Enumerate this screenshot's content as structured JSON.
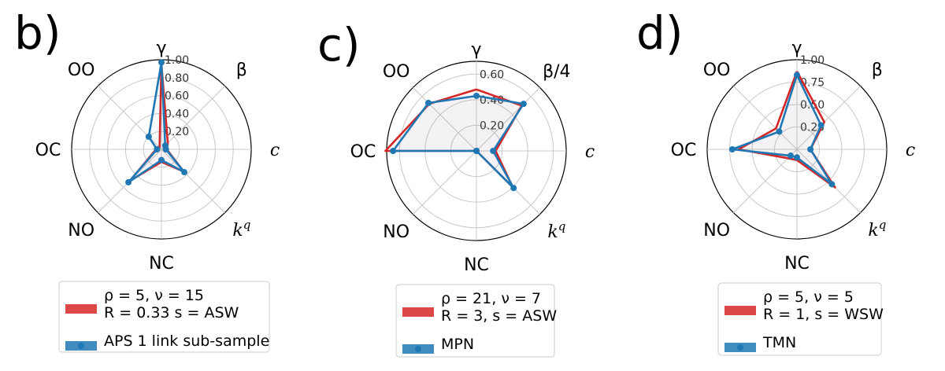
{
  "chart_data": [
    {
      "type": "radar",
      "panel_label": "b)",
      "axes": [
        "γ",
        "β",
        "c",
        "kq",
        "NC",
        "NO",
        "OC",
        "OO"
      ],
      "axis_label_styles": [
        "greek",
        "greek",
        "italic",
        "kq",
        "plain",
        "plain",
        "plain",
        "plain"
      ],
      "rlim": [
        0,
        1.0
      ],
      "rticks": [
        "0.20",
        "0.40",
        "0.60",
        "0.80",
        "1.00"
      ],
      "rtick_values": [
        0.2,
        0.4,
        0.6,
        0.8,
        1.0
      ],
      "series": [
        {
          "name_lines": [
            "ρ = 5,  ν = 15",
            "R = 0.33   s = ASW"
          ],
          "color": "#d62728",
          "values": [
            0.95,
            0.1,
            0.06,
            0.35,
            0.14,
            0.5,
            0.06,
            0.03
          ]
        },
        {
          "name_lines": [
            "APS 1 link sub-sample"
          ],
          "color": "#1f77b4",
          "markers": true,
          "values": [
            0.97,
            0.06,
            0.05,
            0.36,
            0.12,
            0.52,
            0.05,
            0.2
          ]
        }
      ]
    },
    {
      "type": "radar",
      "panel_label": "c)",
      "axes": [
        "γ",
        "β/4",
        "c",
        "kq",
        "NC",
        "NO",
        "OC",
        "OO"
      ],
      "axis_label_styles": [
        "greek",
        "greek",
        "italic",
        "kq",
        "plain",
        "plain",
        "plain",
        "plain"
      ],
      "rlim": [
        0,
        0.7
      ],
      "rticks": [
        "0.20",
        "0.40",
        "0.60"
      ],
      "rtick_values": [
        0.2,
        0.4,
        0.6
      ],
      "series": [
        {
          "name_lines": [
            "ρ = 21,  ν = 7",
            "R = 3, s = ASW"
          ],
          "color": "#d62728",
          "values": [
            0.48,
            0.5,
            0.15,
            0.4,
            0.0,
            0.0,
            0.71,
            0.52
          ]
        },
        {
          "name_lines": [
            "MPN"
          ],
          "color": "#1f77b4",
          "markers": true,
          "values": [
            0.43,
            0.52,
            0.13,
            0.41,
            0.0,
            0.0,
            0.65,
            0.53
          ]
        }
      ]
    },
    {
      "type": "radar",
      "panel_label": "d)",
      "axes": [
        "γ",
        "β",
        "c",
        "kq",
        "NC",
        "NO",
        "OC",
        "OO"
      ],
      "axis_label_styles": [
        "greek",
        "greek",
        "italic",
        "kq",
        "plain",
        "plain",
        "plain",
        "plain"
      ],
      "rlim": [
        0,
        1.0
      ],
      "rticks": [
        "0.25",
        "0.50",
        "0.75",
        "1.00"
      ],
      "rtick_values": [
        0.25,
        0.5,
        0.75,
        1.0
      ],
      "series": [
        {
          "name_lines": [
            "ρ = 5,  ν = 5",
            "R = 1, s = WSW"
          ],
          "color": "#d62728",
          "values": [
            0.87,
            0.43,
            0.15,
            0.6,
            0.12,
            0.14,
            0.65,
            0.33
          ]
        },
        {
          "name_lines": [
            "TMN"
          ],
          "color": "#1f77b4",
          "markers": true,
          "values": [
            0.83,
            0.38,
            0.15,
            0.55,
            0.09,
            0.1,
            0.72,
            0.28
          ]
        }
      ]
    }
  ]
}
